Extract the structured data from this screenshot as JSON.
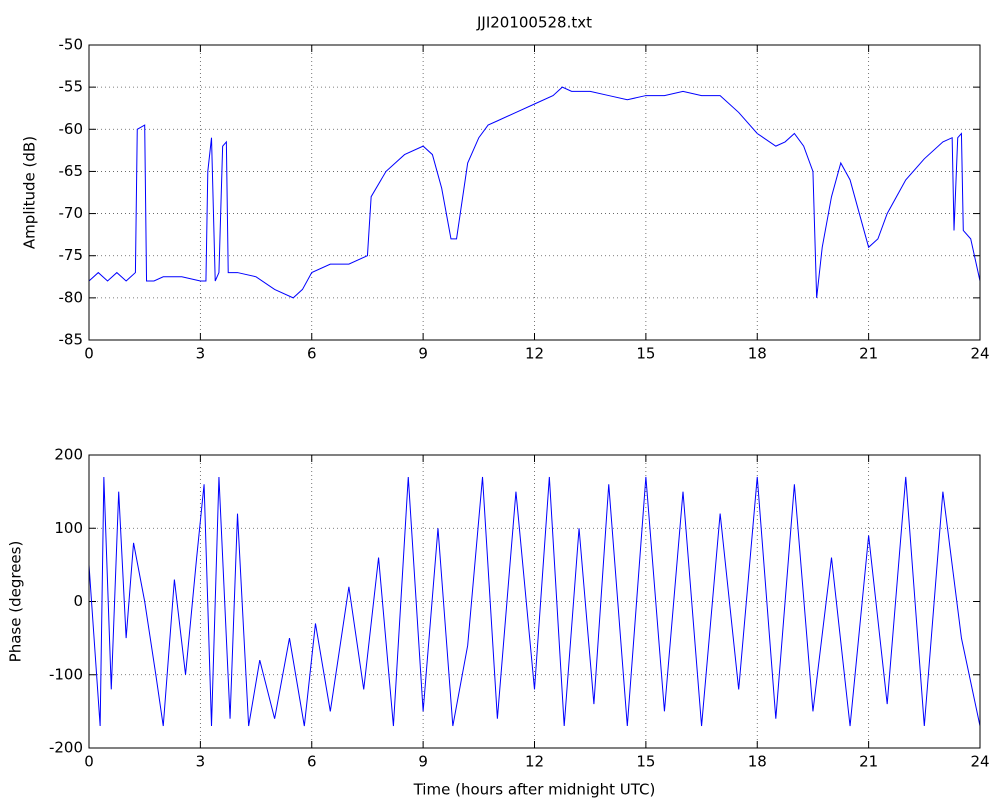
{
  "chart_data": [
    {
      "type": "line",
      "title": "JJI20100528.txt",
      "ylabel": "Amplitude (dB)",
      "x": [
        0,
        0.25,
        0.5,
        0.75,
        1.0,
        1.25,
        1.3,
        1.5,
        1.55,
        1.75,
        2.0,
        2.5,
        3.0,
        3.15,
        3.2,
        3.3,
        3.4,
        3.5,
        3.6,
        3.7,
        3.75,
        4.0,
        4.5,
        5.0,
        5.5,
        5.75,
        6.0,
        6.5,
        7.0,
        7.5,
        7.6,
        8.0,
        8.5,
        9.0,
        9.25,
        9.5,
        9.75,
        9.9,
        10.0,
        10.2,
        10.5,
        10.75,
        11.0,
        11.5,
        12.0,
        12.5,
        12.75,
        13.0,
        13.5,
        14.0,
        14.5,
        15.0,
        15.5,
        16.0,
        16.5,
        17.0,
        17.5,
        18.0,
        18.5,
        18.75,
        19.0,
        19.25,
        19.5,
        19.6,
        19.75,
        20.0,
        20.25,
        20.5,
        21.0,
        21.25,
        21.5,
        22.0,
        22.5,
        23.0,
        23.25,
        23.3,
        23.4,
        23.5,
        23.55,
        23.75,
        24.0
      ],
      "series": [
        {
          "color": "#0000ff",
          "values": [
            -78,
            -77,
            -78,
            -77,
            -78,
            -77,
            -60,
            -59.5,
            -78,
            -78,
            -77.5,
            -77.5,
            -78,
            -78,
            -65,
            -61,
            -78,
            -77,
            -62,
            -61.5,
            -77,
            -77,
            -77.5,
            -79,
            -80,
            -79,
            -77,
            -76,
            -76,
            -75,
            -68,
            -65,
            -63,
            -62,
            -63,
            -67,
            -73,
            -73,
            -70,
            -64,
            -61,
            -59.5,
            -59,
            -58,
            -57,
            -56,
            -55,
            -55.5,
            -55.5,
            -56,
            -56.5,
            -56,
            -56,
            -55.5,
            -56,
            -56,
            -58,
            -60.5,
            -62,
            -61.5,
            -60.5,
            -62,
            -65,
            -80,
            -74,
            -68,
            -64,
            -66,
            -74,
            -73,
            -70,
            -66,
            -63.5,
            -61.5,
            -61,
            -72,
            -61,
            -60.5,
            -72,
            -73,
            -78
          ]
        }
      ],
      "xlim": [
        0,
        24
      ],
      "xticks": [
        0,
        3,
        6,
        9,
        12,
        15,
        18,
        21,
        24
      ],
      "ylim": [
        -85,
        -50
      ],
      "yticks": [
        -85,
        -80,
        -75,
        -70,
        -65,
        -60,
        -55,
        -50
      ],
      "grid": true
    },
    {
      "type": "line",
      "ylabel": "Phase (degrees)",
      "xlabel": "Time (hours after midnight UTC)",
      "x": [
        0,
        0.3,
        0.4,
        0.6,
        0.8,
        1.0,
        1.2,
        1.5,
        1.8,
        2.0,
        2.3,
        2.6,
        2.9,
        3.1,
        3.3,
        3.5,
        3.8,
        4.0,
        4.3,
        4.6,
        5.0,
        5.4,
        5.8,
        6.1,
        6.5,
        7.0,
        7.4,
        7.8,
        8.2,
        8.6,
        9.0,
        9.4,
        9.8,
        10.2,
        10.6,
        11.0,
        11.5,
        12.0,
        12.4,
        12.8,
        13.2,
        13.6,
        14.0,
        14.5,
        15.0,
        15.5,
        16.0,
        16.5,
        17.0,
        17.5,
        18.0,
        18.5,
        19.0,
        19.5,
        20.0,
        20.5,
        21.0,
        21.5,
        22.0,
        22.5,
        23.0,
        23.5,
        24.0
      ],
      "series": [
        {
          "color": "#0000ff",
          "values": [
            50,
            -170,
            170,
            -120,
            150,
            -50,
            80,
            0,
            -100,
            -170,
            30,
            -100,
            60,
            160,
            -170,
            170,
            -160,
            120,
            -170,
            -80,
            -160,
            -50,
            -170,
            -30,
            -150,
            20,
            -120,
            60,
            -170,
            170,
            -150,
            100,
            -170,
            -60,
            170,
            -160,
            150,
            -120,
            170,
            -170,
            100,
            -140,
            160,
            -170,
            170,
            -150,
            150,
            -170,
            120,
            -120,
            170,
            -160,
            160,
            -150,
            60,
            -170,
            90,
            -140,
            170,
            -170,
            150,
            -50,
            -170
          ]
        }
      ],
      "xlim": [
        0,
        24
      ],
      "xticks": [
        0,
        3,
        6,
        9,
        12,
        15,
        18,
        21,
        24
      ],
      "ylim": [
        -200,
        200
      ],
      "yticks": [
        -200,
        -100,
        0,
        100,
        200
      ],
      "grid": true
    }
  ]
}
